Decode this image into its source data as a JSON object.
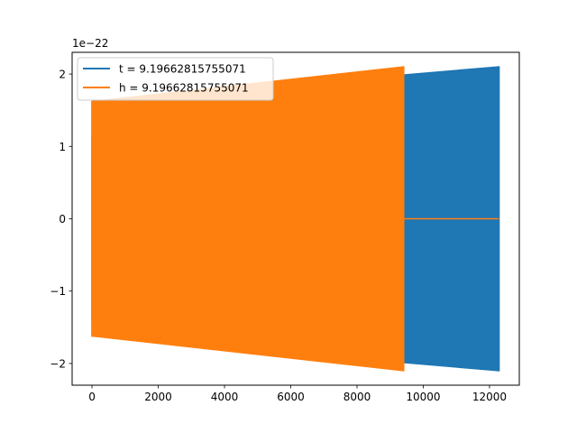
{
  "chart_data": {
    "type": "line",
    "title": "",
    "xlabel": "",
    "ylabel": "",
    "offset_text": "1e−22",
    "xlim": [
      -600,
      12900
    ],
    "ylim": [
      -2.3,
      2.3
    ],
    "xticks": [
      0,
      2000,
      4000,
      6000,
      8000,
      10000,
      12000
    ],
    "xtick_labels": [
      "0",
      "2000",
      "4000",
      "6000",
      "8000",
      "10000",
      "12000"
    ],
    "yticks": [
      -2,
      -1,
      0,
      1,
      2
    ],
    "ytick_labels": [
      "−2",
      "−1",
      "0",
      "1",
      "2"
    ],
    "legend_position": "top-left",
    "grid": false,
    "series": [
      {
        "name": "t = 9.19662815755071",
        "color": "#1f77b4",
        "x_start": 0,
        "x_end": 12290,
        "envelope_start": 1.62,
        "envelope_end": 2.1,
        "oscillating": true
      },
      {
        "name": "h = 9.19662815755071",
        "color": "#ff7f0e",
        "x_start": 0,
        "x_end": 9410,
        "envelope_start": 1.62,
        "envelope_end": 2.1,
        "oscillating": true,
        "zero_segment": {
          "x_start": 9410,
          "x_end": 12290,
          "value": 0
        }
      }
    ]
  }
}
